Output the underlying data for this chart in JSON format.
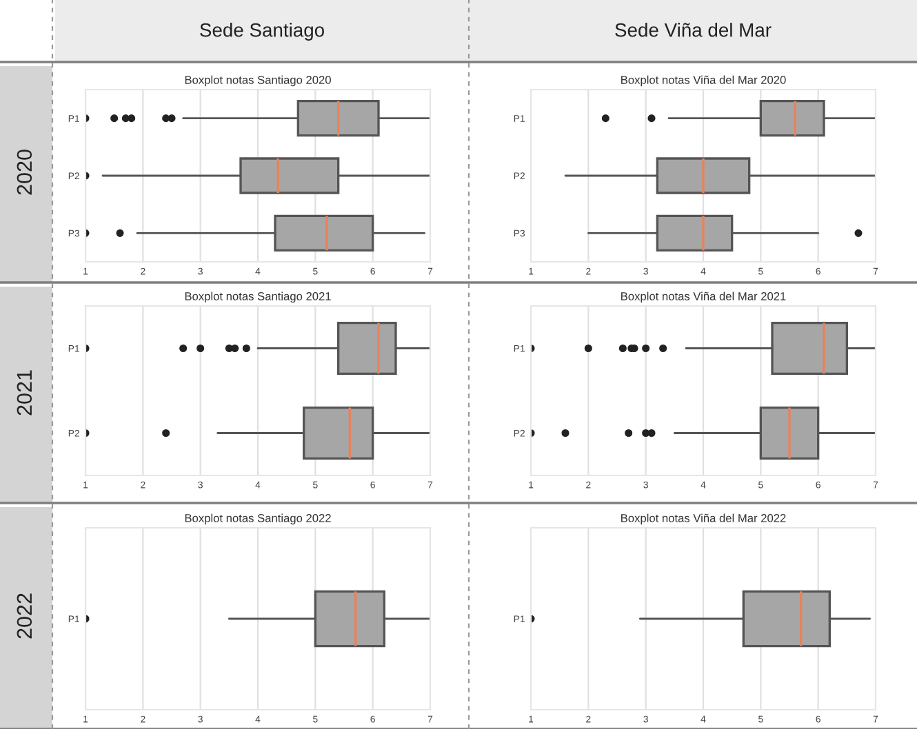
{
  "chart_data": [
    {
      "type": "box",
      "title": "Boxplot notas Santiago 2020",
      "categories": [
        "P1",
        "P2",
        "P3"
      ],
      "xlim": [
        1,
        7
      ],
      "xticks": [
        1,
        2,
        3,
        4,
        5,
        6,
        7
      ],
      "grid": "x",
      "orientation": "horizontal",
      "annotations": [
        "Sede Santiago",
        "2020"
      ],
      "series": [
        {
          "color": "#a6a6a6",
          "boxes": [
            {
              "low": 2.7,
              "q1": 4.7,
              "median": 5.4,
              "q3": 6.1,
              "high": 7.0,
              "outliers": [
                1.0,
                1.5,
                1.7,
                1.8,
                2.4,
                2.5
              ]
            },
            {
              "low": 1.3,
              "q1": 3.7,
              "median": 4.35,
              "q3": 5.4,
              "high": 7.0,
              "outliers": [
                1.0
              ]
            },
            {
              "low": 1.9,
              "q1": 4.3,
              "median": 5.2,
              "q3": 6.0,
              "high": 6.9,
              "outliers": [
                1.0,
                1.6
              ]
            }
          ]
        }
      ]
    },
    {
      "type": "box",
      "title": "Boxplot notas Viña del Mar 2020",
      "categories": [
        "P1",
        "P2",
        "P3"
      ],
      "xlim": [
        1,
        7
      ],
      "xticks": [
        1,
        2,
        3,
        4,
        5,
        6,
        7
      ],
      "grid": "x",
      "orientation": "horizontal",
      "annotations": [
        "Sede Viña del Mar"
      ],
      "series": [
        {
          "color": "#a6a6a6",
          "boxes": [
            {
              "low": 3.4,
              "q1": 5.0,
              "median": 5.6,
              "q3": 6.1,
              "high": 7.0,
              "outliers": [
                2.3,
                3.1
              ]
            },
            {
              "low": 1.6,
              "q1": 3.2,
              "median": 4.0,
              "q3": 4.8,
              "high": 7.0
            },
            {
              "low": 2.0,
              "q1": 3.2,
              "median": 4.0,
              "q3": 4.5,
              "high": 6.0,
              "outliers": [
                6.7
              ]
            }
          ]
        }
      ]
    },
    {
      "type": "box",
      "title": "Boxplot notas Santiago 2021",
      "categories": [
        "P1",
        "P2"
      ],
      "xlim": [
        1,
        7
      ],
      "xticks": [
        1,
        2,
        3,
        4,
        5,
        6,
        7
      ],
      "grid": "x",
      "orientation": "horizontal",
      "annotations": [
        "2021"
      ],
      "series": [
        {
          "color": "#a6a6a6",
          "boxes": [
            {
              "low": 4.0,
              "q1": 5.4,
              "median": 6.1,
              "q3": 6.4,
              "high": 7.0,
              "outliers": [
                1.0,
                2.7,
                3.0,
                3.5,
                3.6,
                3.8
              ]
            },
            {
              "low": 3.3,
              "q1": 4.8,
              "median": 5.6,
              "q3": 6.0,
              "high": 7.0,
              "outliers": [
                1.0,
                2.4
              ]
            }
          ]
        }
      ]
    },
    {
      "type": "box",
      "title": "Boxplot notas Viña del Mar 2021",
      "categories": [
        "P1",
        "P2"
      ],
      "xlim": [
        1,
        7
      ],
      "xticks": [
        1,
        2,
        3,
        4,
        5,
        6,
        7
      ],
      "grid": "x",
      "orientation": "horizontal",
      "series": [
        {
          "color": "#a6a6a6",
          "boxes": [
            {
              "low": 3.7,
              "q1": 5.2,
              "median": 6.1,
              "q3": 6.5,
              "high": 7.0,
              "outliers": [
                1.0,
                2.0,
                2.6,
                2.75,
                2.8,
                3.0,
                3.3
              ]
            },
            {
              "low": 3.5,
              "q1": 5.0,
              "median": 5.5,
              "q3": 6.0,
              "high": 7.0,
              "outliers": [
                1.0,
                1.6,
                2.7,
                3.0,
                3.1
              ]
            }
          ]
        }
      ]
    },
    {
      "type": "box",
      "title": "Boxplot notas Santiago 2022",
      "categories": [
        "P1"
      ],
      "xlim": [
        1,
        7
      ],
      "xticks": [
        1,
        2,
        3,
        4,
        5,
        6,
        7
      ],
      "grid": "x",
      "orientation": "horizontal",
      "annotations": [
        "2022"
      ],
      "series": [
        {
          "color": "#a6a6a6",
          "boxes": [
            {
              "low": 3.5,
              "q1": 5.0,
              "median": 5.7,
              "q3": 6.2,
              "high": 7.0,
              "outliers": [
                1.0
              ]
            }
          ]
        }
      ]
    },
    {
      "type": "box",
      "title": "Boxplot notas Viña del Mar 2022",
      "categories": [
        "P1"
      ],
      "xlim": [
        1,
        7
      ],
      "xticks": [
        1,
        2,
        3,
        4,
        5,
        6,
        7
      ],
      "grid": "x",
      "orientation": "horizontal",
      "series": [
        {
          "color": "#a6a6a6",
          "boxes": [
            {
              "low": 2.9,
              "q1": 4.7,
              "median": 5.7,
              "q3": 6.2,
              "high": 6.9,
              "outliers": [
                1.0
              ]
            }
          ]
        }
      ]
    }
  ]
}
